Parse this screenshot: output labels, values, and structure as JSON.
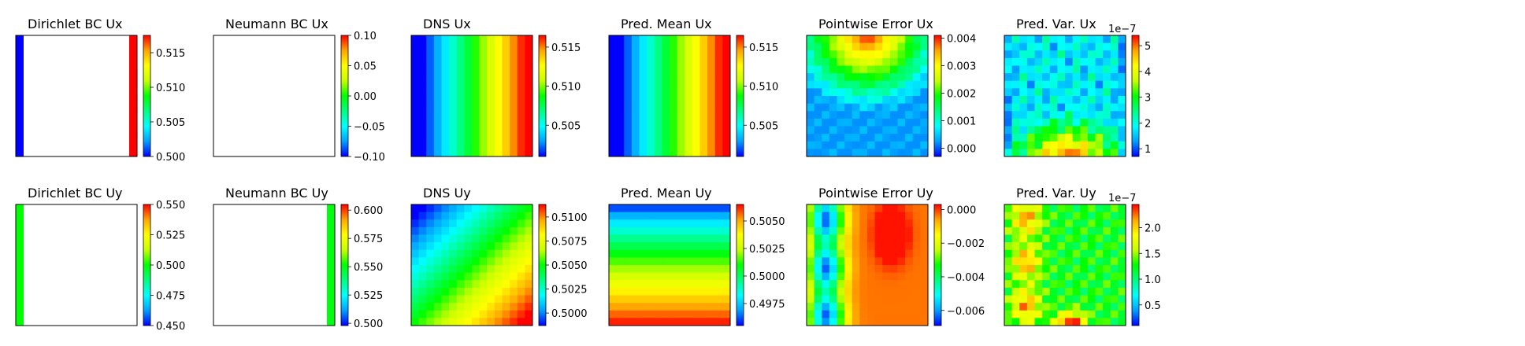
{
  "figure": {
    "description_rows": [
      "Ux",
      "Uy"
    ]
  },
  "colormap": [
    "#0000ff",
    "#00a0ff",
    "#00ffff",
    "#00ff80",
    "#00ff00",
    "#c8ff00",
    "#ffff00",
    "#ffa500",
    "#ff0000"
  ],
  "chart_data": [
    {
      "type": "heatmap",
      "title": "Dirichlet BC Ux",
      "colorbar": {
        "vmin": 0.5,
        "vmax": 0.5175,
        "ticks": [
          "0.500",
          "0.505",
          "0.510",
          "0.515"
        ],
        "tick_values": [
          0.5,
          0.505,
          0.51,
          0.515
        ],
        "offset": ""
      },
      "field": {
        "kind": "boundary",
        "left": 0.5,
        "right": 0.5175,
        "top": null,
        "bottom": null
      }
    },
    {
      "type": "heatmap",
      "title": "Neumann BC Ux",
      "colorbar": {
        "vmin": -0.1,
        "vmax": 0.1,
        "ticks": [
          "−0.10",
          "−0.05",
          "0.00",
          "0.05",
          "0.10"
        ],
        "tick_values": [
          -0.1,
          -0.05,
          0.0,
          0.05,
          0.1
        ],
        "offset": ""
      },
      "field": {
        "kind": "empty"
      }
    },
    {
      "type": "heatmap",
      "title": "DNS Ux",
      "colorbar": {
        "vmin": 0.501,
        "vmax": 0.5165,
        "ticks": [
          "0.505",
          "0.510",
          "0.515"
        ],
        "tick_values": [
          0.505,
          0.51,
          0.515
        ],
        "offset": ""
      },
      "field": {
        "kind": "xgrad",
        "from": 0.5,
        "to": 0.517
      }
    },
    {
      "type": "heatmap",
      "title": "Pred. Mean Ux",
      "colorbar": {
        "vmin": 0.501,
        "vmax": 0.5165,
        "ticks": [
          "0.505",
          "0.510",
          "0.515"
        ],
        "tick_values": [
          0.505,
          0.51,
          0.515
        ],
        "offset": ""
      },
      "field": {
        "kind": "xgrad",
        "from": 0.5,
        "to": 0.517
      }
    },
    {
      "type": "heatmap",
      "title": "Pointwise Error Ux",
      "colorbar": {
        "vmin": -0.0003,
        "vmax": 0.0041,
        "ticks": [
          "0.000",
          "0.001",
          "0.002",
          "0.003",
          "0.004"
        ],
        "tick_values": [
          0.0,
          0.001,
          0.002,
          0.003,
          0.004
        ],
        "offset": ""
      },
      "field": {
        "kind": "toparc",
        "base": 0.0002,
        "peak": 0.0041
      }
    },
    {
      "type": "heatmap",
      "title": "Pred. Var. Ux",
      "colorbar": {
        "vmin": 0.7,
        "vmax": 5.4,
        "ticks": [
          "1",
          "2",
          "3",
          "4",
          "5"
        ],
        "tick_values": [
          1,
          2,
          3,
          4,
          5
        ],
        "offset": "1e−7"
      },
      "field": {
        "kind": "bottomspot",
        "base": 1.8,
        "peak": 5.3
      }
    },
    {
      "type": "heatmap",
      "title": "Dirichlet BC Uy",
      "colorbar": {
        "vmin": 0.45,
        "vmax": 0.55,
        "ticks": [
          "0.450",
          "0.475",
          "0.500",
          "0.525",
          "0.550"
        ],
        "tick_values": [
          0.45,
          0.475,
          0.5,
          0.525,
          0.55
        ],
        "offset": ""
      },
      "field": {
        "kind": "boundary",
        "left": 0.5,
        "right": null,
        "top": null,
        "bottom": null
      }
    },
    {
      "type": "heatmap",
      "title": "Neumann BC Uy",
      "colorbar": {
        "vmin": 0.498,
        "vmax": 0.605,
        "ticks": [
          "0.500",
          "0.525",
          "0.550",
          "0.575",
          "0.600"
        ],
        "tick_values": [
          0.5,
          0.525,
          0.55,
          0.575,
          0.6
        ],
        "offset": ""
      },
      "field": {
        "kind": "boundary",
        "left": null,
        "right": 0.55,
        "top": null,
        "bottom": null
      }
    },
    {
      "type": "heatmap",
      "title": "DNS Uy",
      "colorbar": {
        "vmin": 0.4987,
        "vmax": 0.5113,
        "ticks": [
          "0.5000",
          "0.5025",
          "0.5050",
          "0.5075",
          "0.5100"
        ],
        "tick_values": [
          0.5,
          0.5025,
          0.505,
          0.5075,
          0.51
        ],
        "offset": ""
      },
      "field": {
        "kind": "diag",
        "from": 0.4985,
        "to": 0.5115
      }
    },
    {
      "type": "heatmap",
      "title": "Pred. Mean Uy",
      "colorbar": {
        "vmin": 0.4955,
        "vmax": 0.5065,
        "ticks": [
          "0.4975",
          "0.5000",
          "0.5025",
          "0.5050"
        ],
        "tick_values": [
          0.4975,
          0.5,
          0.5025,
          0.505
        ],
        "offset": ""
      },
      "field": {
        "kind": "ygrad",
        "from": 0.4955,
        "to": 0.5065
      }
    },
    {
      "type": "heatmap",
      "title": "Pointwise Error Uy",
      "colorbar": {
        "vmin": -0.0069,
        "vmax": 0.0003,
        "ticks": [
          "−0.006",
          "−0.004",
          "−0.002",
          "0.000"
        ],
        "tick_values": [
          -0.006,
          -0.004,
          -0.002,
          0.0
        ],
        "offset": ""
      },
      "field": {
        "kind": "leftband",
        "high": 0.0002,
        "low": -0.0065
      }
    },
    {
      "type": "heatmap",
      "title": "Pred. Var. Uy",
      "colorbar": {
        "vmin": 0.1,
        "vmax": 2.45,
        "ticks": [
          "0.5",
          "1.0",
          "1.5",
          "2.0"
        ],
        "tick_values": [
          0.5,
          1.0,
          1.5,
          2.0
        ],
        "offset": "1e−7"
      },
      "field": {
        "kind": "varuy",
        "base": 0.6,
        "peak": 2.4
      }
    }
  ]
}
